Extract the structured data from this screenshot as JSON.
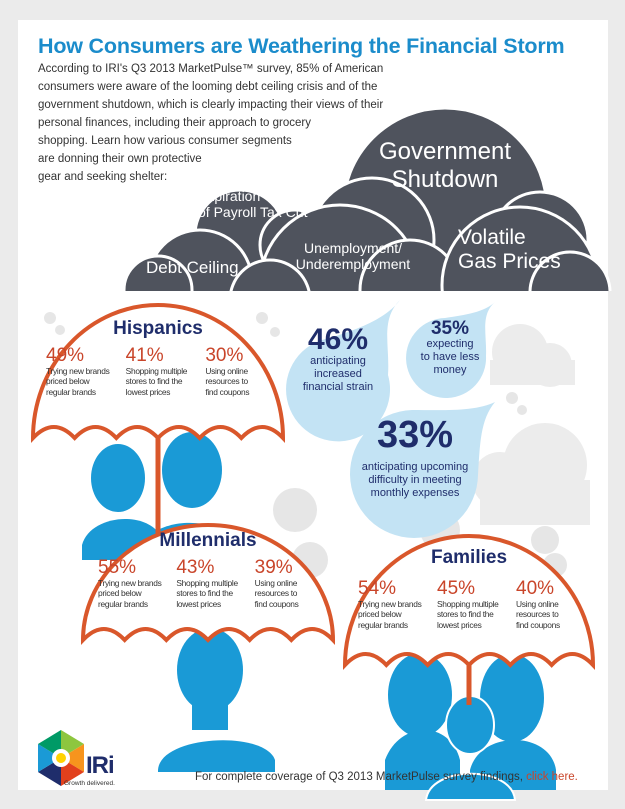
{
  "title": "How Consumers are Weathering the Financial Storm",
  "intro_lines": [
    "According to IRI's Q3 2013 MarketPulse™ survey, 85% of American",
    "consumers were aware of the looming debt ceiling crisis and of the",
    "government shutdown, which is clearly impacting their views of their",
    "personal finances, including their approach to grocery",
    "shopping. Learn how various consumer segments",
    "are donning their own protective",
    "gear and seeking shelter:"
  ],
  "clouds": {
    "government": [
      "Government",
      "Shutdown"
    ],
    "payroll": [
      "Expiration",
      "of Payroll Tax Cut"
    ],
    "debt": "Debt Ceiling",
    "unemployment": [
      "Unemployment/",
      "Underemployment"
    ],
    "gas": [
      "Volatile",
      "Gas Prices"
    ]
  },
  "colors": {
    "accent": "#1b8ccb",
    "orange": "#d9572b",
    "navy": "#1f2d6b",
    "cloud": "#4f535d",
    "drop": "#c3e3f4",
    "silhouette": "#1a9ad6"
  },
  "segments": {
    "hispanics": {
      "title": "Hispanics",
      "stats": [
        {
          "pct": "49%",
          "desc": [
            "Trying new brands",
            "priced below",
            "regular brands"
          ]
        },
        {
          "pct": "41%",
          "desc": [
            "Shopping multiple",
            "stores to find the",
            "lowest prices"
          ]
        },
        {
          "pct": "30%",
          "desc": [
            "Using online",
            "resources to",
            "find coupons"
          ]
        }
      ]
    },
    "millennials": {
      "title": "Millennials",
      "stats": [
        {
          "pct": "55%",
          "desc": [
            "Trying new brands",
            "priced below",
            "regular brands"
          ]
        },
        {
          "pct": "43%",
          "desc": [
            "Shopping multiple",
            "stores to find the",
            "lowest prices"
          ]
        },
        {
          "pct": "39%",
          "desc": [
            "Using online",
            "resources to",
            "find coupons"
          ]
        }
      ]
    },
    "families": {
      "title": "Families",
      "stats": [
        {
          "pct": "54%",
          "desc": [
            "Trying new brands",
            "priced below",
            "regular brands"
          ]
        },
        {
          "pct": "45%",
          "desc": [
            "Shopping multiple",
            "stores to find the",
            "lowest prices"
          ]
        },
        {
          "pct": "40%",
          "desc": [
            "Using online",
            "resources to",
            "find coupons"
          ]
        }
      ]
    }
  },
  "drops": [
    {
      "pct": "46%",
      "desc": [
        "anticipating",
        "increased",
        "financial strain"
      ]
    },
    {
      "pct": "35%",
      "desc": [
        "expecting",
        "to have less",
        "money"
      ]
    },
    {
      "pct": "33%",
      "desc": [
        "anticipating upcoming",
        "difficulty in meeting",
        "monthly expenses"
      ]
    }
  ],
  "logo": {
    "name": "IRi",
    "tagline": "Growth delivered."
  },
  "footer": {
    "text": "For complete coverage of Q3 2013 MarketPulse survey findings, ",
    "link": "click here."
  }
}
